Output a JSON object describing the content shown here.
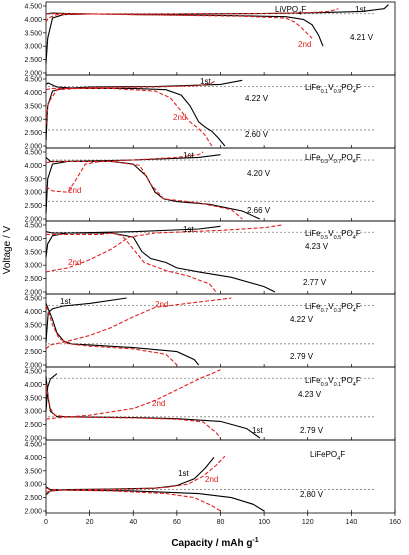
{
  "chart_data": {
    "type": "line",
    "xlabel": "Capacity / mAh g",
    "xlabel_sup": "-1",
    "ylabel": "Voltage / V",
    "xlim": [
      0,
      160
    ],
    "x_ticks": [
      "0",
      "20",
      "40",
      "60",
      "80",
      "100",
      "120",
      "140",
      "160"
    ],
    "ylim": [
      2.0,
      4.5
    ],
    "y_ticks": [
      "2.000",
      "2.500",
      "3.000",
      "3.500",
      "4.000",
      "4.500"
    ],
    "colors": {
      "first_cycle": "#000000",
      "second_cycle": "#e02020",
      "reference": "#808080"
    },
    "panels": [
      {
        "composition": {
          "base": "LiVPO",
          "sub1": "4",
          "mid": "F",
          "sub2": "",
          "tail": ""
        },
        "voltage_label": "4.21 V",
        "voltage": 4.21,
        "cycle_labels": {
          "first": "1st",
          "second": "2nd"
        },
        "y_ticks": [
          "2.000",
          "2.500",
          "3.000",
          "3.500",
          "4.000",
          "4.500"
        ],
        "series": [
          {
            "name": "1st",
            "style": "solid",
            "x": [
              0,
              0.8,
              3,
              8,
              20,
              60,
              100,
              125,
              145,
              155,
              157
            ],
            "y": [
              2.35,
              3.3,
              4.05,
              4.18,
              4.2,
              4.2,
              4.22,
              4.25,
              4.3,
              4.4,
              4.55
            ]
          },
          {
            "name": "1st",
            "style": "solid",
            "x": [
              0,
              3,
              10,
              40,
              80,
              110,
              118,
              122,
              125,
              127
            ],
            "y": [
              4.21,
              4.24,
              4.22,
              4.18,
              4.15,
              4.1,
              4.0,
              3.8,
              3.4,
              3.0
            ]
          },
          {
            "name": "2nd",
            "style": "dashed",
            "x": [
              0,
              1,
              5,
              20,
              60,
              100,
              120,
              130,
              134
            ],
            "y": [
              3.9,
              4.05,
              4.18,
              4.2,
              4.2,
              4.22,
              4.25,
              4.3,
              4.4
            ]
          },
          {
            "name": "2nd",
            "style": "dashed",
            "x": [
              0,
              5,
              40,
              90,
              110,
              114,
              117,
              120,
              122
            ],
            "y": [
              4.2,
              4.22,
              4.18,
              4.12,
              4.05,
              3.9,
              3.7,
              3.45,
              3.3
            ]
          }
        ]
      },
      {
        "composition": {
          "base": "LiFe",
          "sub1": "0.1",
          "mid": "V",
          "sub2": "0.9",
          "tail": "PO4F"
        },
        "voltage_label": "4.22 V",
        "voltage": 4.22,
        "voltage2_label": "2.60 V",
        "voltage2": 2.6,
        "cycle_labels": {
          "first": "1st",
          "second": "2nd"
        },
        "y_ticks": [
          "2.000",
          "2.500",
          "3.000",
          "3.500",
          "4.000",
          "4.500"
        ],
        "series": [
          {
            "name": "1st",
            "style": "solid",
            "x": [
              0,
              0.8,
              3,
              8,
              20,
              50,
              80,
              90
            ],
            "y": [
              2.2,
              3.5,
              4.05,
              4.15,
              4.2,
              4.22,
              4.3,
              4.45
            ]
          },
          {
            "name": "1st",
            "style": "solid",
            "x": [
              0,
              1,
              5,
              15,
              40,
              55,
              62,
              66,
              70,
              73,
              76,
              79,
              82
            ],
            "y": [
              4.3,
              4.35,
              4.2,
              4.15,
              4.15,
              4.1,
              3.9,
              3.5,
              2.9,
              2.7,
              2.55,
              2.3,
              2.0
            ]
          },
          {
            "name": "2nd",
            "style": "dashed",
            "x": [
              0,
              1,
              5,
              20,
              50,
              70,
              76,
              78
            ],
            "y": [
              2.8,
              3.6,
              4.1,
              4.18,
              4.2,
              4.25,
              4.35,
              4.45
            ]
          },
          {
            "name": "2nd",
            "style": "dashed",
            "x": [
              0,
              3,
              10,
              30,
              50,
              57,
              62,
              66,
              70,
              73,
              76
            ],
            "y": [
              4.1,
              4.15,
              4.15,
              4.15,
              4.05,
              3.8,
              3.3,
              2.9,
              2.65,
              2.4,
              2.0
            ]
          }
        ]
      },
      {
        "composition": {
          "base": "LiFe",
          "sub1": "0.3",
          "mid": "V",
          "sub2": "0.7",
          "tail": "PO4F"
        },
        "voltage_label": "4.20 V",
        "voltage": 4.2,
        "voltage2_label": "2.66 V",
        "voltage2": 2.66,
        "cycle_labels": {
          "first": "1st",
          "second": "2nd"
        },
        "y_ticks": [
          "2.000",
          "2.500",
          "3.000",
          "3.500",
          "4.000",
          "4.500"
        ],
        "series": [
          {
            "name": "1st",
            "style": "solid",
            "x": [
              0,
              0.8,
              3,
              10,
              40,
              70,
              80
            ],
            "y": [
              2.2,
              3.5,
              4.05,
              4.15,
              4.2,
              4.3,
              4.4
            ]
          },
          {
            "name": "1st",
            "style": "solid",
            "x": [
              0,
              2,
              10,
              30,
              40,
              46,
              50,
              54,
              60,
              75,
              90,
              98
            ],
            "y": [
              4.3,
              4.15,
              4.15,
              4.15,
              4.05,
              3.6,
              3.0,
              2.75,
              2.65,
              2.55,
              2.3,
              2.0
            ]
          },
          {
            "name": "2nd",
            "style": "dashed",
            "x": [
              0,
              3,
              10,
              14,
              18,
              25,
              40,
              60,
              70,
              72
            ],
            "y": [
              3.2,
              3.05,
              3.0,
              3.5,
              4.05,
              4.15,
              4.2,
              4.3,
              4.4,
              4.5
            ]
          },
          {
            "name": "2nd",
            "style": "dashed",
            "x": [
              0,
              5,
              30,
              43,
              48,
              54,
              70,
              85,
              90
            ],
            "y": [
              4.1,
              4.15,
              4.15,
              4.0,
              3.3,
              2.75,
              2.6,
              2.35,
              2.0
            ]
          }
        ]
      },
      {
        "composition": {
          "base": "LiFe",
          "sub1": "0.5",
          "mid": "V",
          "sub2": "0.5",
          "tail": "PO4F"
        },
        "voltage_label": "4.23 V",
        "voltage": 4.23,
        "voltage2_label": "2.77 V",
        "voltage2": 2.77,
        "cycle_labels": {
          "first": "1st",
          "second": "2nd"
        },
        "y_ticks": [
          "2.000",
          "2.500",
          "3.000",
          "3.500",
          "4.000",
          "4.500"
        ],
        "series": [
          {
            "name": "1st",
            "style": "solid",
            "x": [
              0,
              0.8,
              3,
              10,
              40,
              70,
              80
            ],
            "y": [
              3.3,
              3.8,
              4.1,
              4.2,
              4.25,
              4.35,
              4.45
            ]
          },
          {
            "name": "1st",
            "style": "solid",
            "x": [
              0,
              3,
              30,
              40,
              44,
              48,
              55,
              60,
              70,
              85,
              100,
              105
            ],
            "y": [
              4.25,
              4.2,
              4.2,
              4.05,
              3.5,
              3.25,
              3.1,
              2.9,
              2.75,
              2.55,
              2.2,
              2.0
            ]
          },
          {
            "name": "2nd",
            "style": "dashed",
            "x": [
              0,
              3,
              10,
              20,
              30,
              38,
              50,
              65,
              80,
              100,
              108
            ],
            "y": [
              2.75,
              2.8,
              2.9,
              3.2,
              3.6,
              4.05,
              4.2,
              4.25,
              4.3,
              4.4,
              4.5
            ]
          },
          {
            "name": "2nd",
            "style": "dashed",
            "x": [
              0,
              10,
              25,
              30,
              35,
              40,
              45,
              55,
              65,
              75,
              78
            ],
            "y": [
              4.15,
              4.15,
              4.15,
              4.2,
              4.1,
              3.6,
              3.1,
              2.8,
              2.6,
              2.3,
              2.0
            ]
          }
        ]
      },
      {
        "composition": {
          "base": "LiFe",
          "sub1": "0.7",
          "mid": "V",
          "sub2": "0.3",
          "tail": "PO4F"
        },
        "voltage_label": "4.22 V",
        "voltage": 4.22,
        "voltage2_label": "2.79 V",
        "voltage2": 2.79,
        "cycle_labels": {
          "first": "1st",
          "second": "2nd"
        },
        "y_ticks": [
          "2.000",
          "2.500",
          "3.000",
          "3.500",
          "4.000",
          "4.500"
        ],
        "series": [
          {
            "name": "1st",
            "style": "solid",
            "x": [
              0,
              1,
              3,
              8,
              20,
              37
            ],
            "y": [
              2.85,
              3.95,
              4.1,
              4.2,
              4.3,
              4.5
            ]
          },
          {
            "name": "1st",
            "style": "solid",
            "x": [
              0,
              1,
              3,
              5,
              8,
              12,
              20,
              40,
              60,
              68,
              70
            ],
            "y": [
              4.3,
              4.1,
              3.7,
              3.2,
              2.9,
              2.78,
              2.75,
              2.65,
              2.5,
              2.2,
              2.0
            ]
          },
          {
            "name": "2nd",
            "style": "dashed",
            "x": [
              0,
              2,
              8,
              20,
              30,
              40,
              50,
              60,
              75,
              85
            ],
            "y": [
              2.6,
              2.75,
              2.85,
              3.1,
              3.4,
              3.8,
              4.15,
              4.25,
              4.4,
              4.5
            ]
          },
          {
            "name": "2nd",
            "style": "dashed",
            "x": [
              0,
              1,
              3,
              6,
              10,
              20,
              40,
              55,
              60
            ],
            "y": [
              4.2,
              4.0,
              3.5,
              3.0,
              2.8,
              2.7,
              2.6,
              2.4,
              2.0
            ]
          }
        ]
      },
      {
        "composition": {
          "base": "LiFe",
          "sub1": "0.9",
          "mid": "V",
          "sub2": "0.1",
          "tail": "PO4F"
        },
        "voltage_label": "4.23 V",
        "voltage": 4.23,
        "voltage2_label": "2.79 V",
        "voltage2": 2.79,
        "cycle_labels": {
          "first": "",
          "second": "2nd",
          "first_discharge": "1st"
        },
        "y_ticks": [
          "2.000",
          "2.500",
          "3.000",
          "3.500",
          "4.000",
          "4.500"
        ],
        "series": [
          {
            "name": "1st",
            "style": "solid",
            "x": [
              0,
              0.8,
              2,
              5
            ],
            "y": [
              3.0,
              3.9,
              4.2,
              4.4
            ]
          },
          {
            "name": "1st",
            "style": "solid",
            "x": [
              0,
              1,
              2,
              5,
              20,
              40,
              60,
              80,
              92,
              98
            ],
            "y": [
              4.3,
              3.5,
              3.0,
              2.8,
              2.78,
              2.76,
              2.72,
              2.62,
              2.35,
              2.0
            ]
          },
          {
            "name": "2nd",
            "style": "dashed",
            "x": [
              0,
              5,
              20,
              40,
              50,
              60,
              70,
              76,
              80
            ],
            "y": [
              2.7,
              2.75,
              2.85,
              3.1,
              3.4,
              3.8,
              4.2,
              4.4,
              4.55
            ]
          },
          {
            "name": "2nd",
            "style": "dashed",
            "x": [
              0,
              1,
              2,
              4,
              10,
              40,
              60,
              72,
              78,
              80
            ],
            "y": [
              4.0,
              3.5,
              3.1,
              2.85,
              2.78,
              2.75,
              2.7,
              2.6,
              2.2,
              2.0
            ]
          }
        ]
      },
      {
        "composition": {
          "base": "LiFePO",
          "sub1": "4",
          "mid": "F",
          "sub2": "",
          "tail": ""
        },
        "voltage_label": "2.80 V",
        "voltage": 2.8,
        "cycle_labels": {
          "first": "1st",
          "second": "2nd"
        },
        "y_ticks": [
          "2.000",
          "2.500",
          "3.000",
          "3.500",
          "4.000",
          "4.500"
        ],
        "series": [
          {
            "name": "1st",
            "style": "solid",
            "x": [
              0,
              2,
              10,
              30,
              50,
              60,
              68,
              73,
              77
            ],
            "y": [
              2.6,
              2.75,
              2.8,
              2.82,
              2.85,
              2.95,
              3.2,
              3.6,
              4.0
            ]
          },
          {
            "name": "1st",
            "style": "solid",
            "x": [
              0,
              2,
              10,
              40,
              70,
              85,
              95,
              100
            ],
            "y": [
              2.9,
              2.8,
              2.78,
              2.75,
              2.65,
              2.5,
              2.25,
              2.0
            ]
          },
          {
            "name": "2nd",
            "style": "dashed",
            "x": [
              0,
              5,
              20,
              40,
              55,
              65,
              72,
              78,
              82
            ],
            "y": [
              2.7,
              2.78,
              2.8,
              2.82,
              2.88,
              3.0,
              3.3,
              3.7,
              4.05
            ]
          },
          {
            "name": "2nd",
            "style": "dashed",
            "x": [
              0,
              5,
              30,
              55,
              68,
              76,
              80
            ],
            "y": [
              2.85,
              2.78,
              2.75,
              2.65,
              2.5,
              2.2,
              2.0
            ]
          }
        ]
      }
    ]
  }
}
